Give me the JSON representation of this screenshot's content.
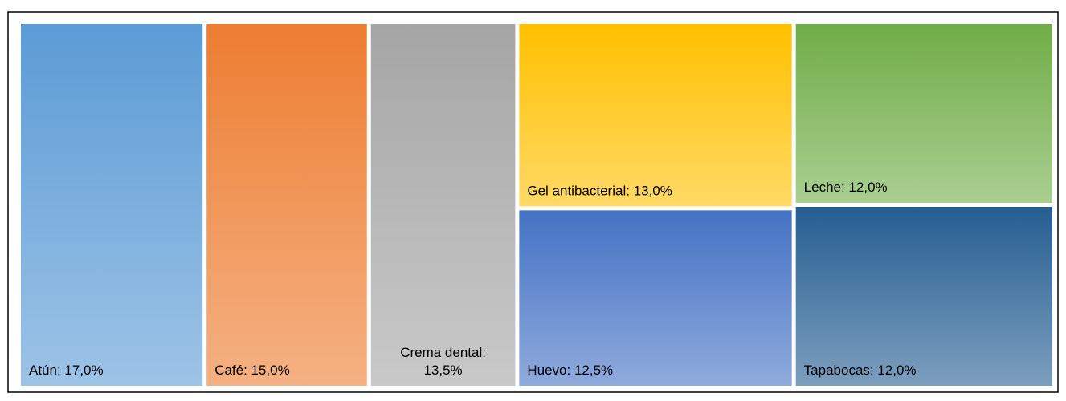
{
  "chart_data": {
    "type": "treemap",
    "values": [
      17,
      15,
      13.5,
      13,
      12.5,
      12,
      12
    ],
    "value_labels": [
      "Atún: 17,0%",
      "Café: 15,0%",
      "Crema dental: 13,5%",
      "Gel antibacterial: 13,0%",
      "Huevo: 12,5%",
      "Leche: 12,0%",
      "Tapabocas: 12,0%"
    ],
    "colors": [
      "#5b9bd5",
      "#ed7d31",
      "#a5a5a5",
      "#ffc000",
      "#4472c4",
      "#70ad47",
      "#255e91"
    ]
  }
}
